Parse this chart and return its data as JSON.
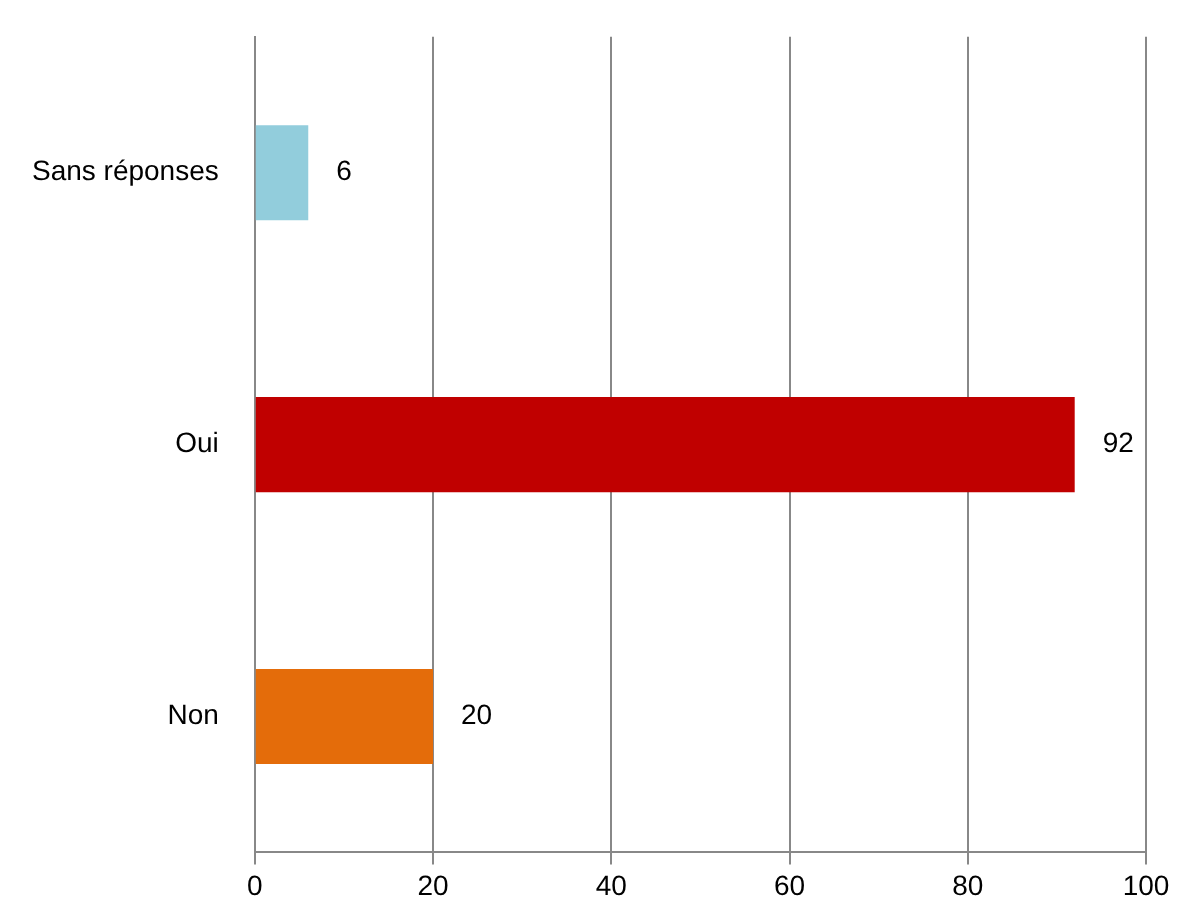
{
  "chart_data": {
    "type": "bar",
    "orientation": "horizontal",
    "categories": [
      "Sans réponses",
      "Oui",
      "Non"
    ],
    "values": [
      6,
      92,
      20
    ],
    "colors": [
      "#92cddc",
      "#c00000",
      "#e46c0a"
    ],
    "xlim": [
      0,
      100
    ],
    "xticks": [
      0,
      20,
      40,
      60,
      80,
      100
    ],
    "grid": "x",
    "legend": false,
    "data_labels": true
  }
}
